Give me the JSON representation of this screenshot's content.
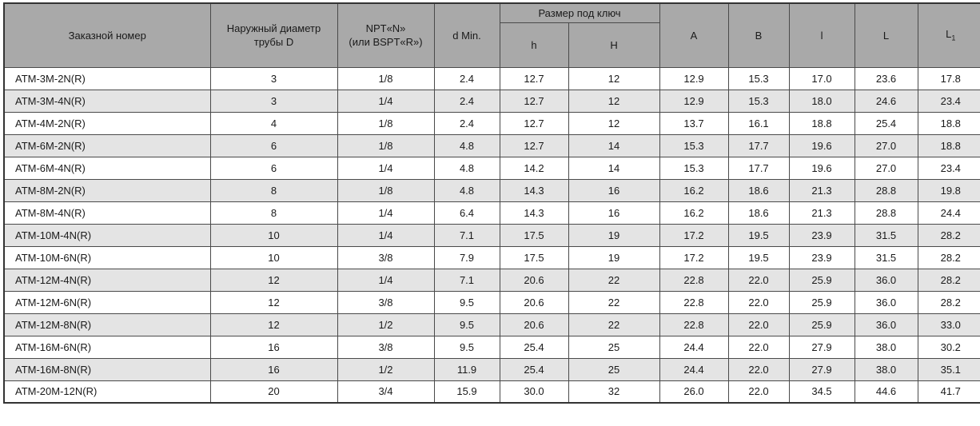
{
  "colors": {
    "header_bg": "#a9a9a9",
    "stripe_bg": "#e4e4e4",
    "border": "#4a4a4a",
    "text": "#1a1a1a"
  },
  "table": {
    "headers": {
      "order_number": "Заказной номер",
      "outer_diameter": "Наружный диаметр\nтрубы D",
      "thread": "NPT«N»\n(или BSPT«R»)",
      "d_min": "d Min.",
      "wrench_size": "Размер под ключ",
      "h_lower": "h",
      "h_upper": "H",
      "a": "A",
      "b": "B",
      "l_lower": "l",
      "l_upper": "L",
      "l1_base": "L",
      "l1_sub": "1"
    },
    "rows": [
      [
        "ATM-3M-2N(R)",
        "3",
        "1/8",
        "2.4",
        "12.7",
        "12",
        "12.9",
        "15.3",
        "17.0",
        "23.6",
        "17.8"
      ],
      [
        "ATM-3M-4N(R)",
        "3",
        "1/4",
        "2.4",
        "12.7",
        "12",
        "12.9",
        "15.3",
        "18.0",
        "24.6",
        "23.4"
      ],
      [
        "ATM-4M-2N(R)",
        "4",
        "1/8",
        "2.4",
        "12.7",
        "12",
        "13.7",
        "16.1",
        "18.8",
        "25.4",
        "18.8"
      ],
      [
        "ATM-6M-2N(R)",
        "6",
        "1/8",
        "4.8",
        "12.7",
        "14",
        "15.3",
        "17.7",
        "19.6",
        "27.0",
        "18.8"
      ],
      [
        "ATM-6M-4N(R)",
        "6",
        "1/4",
        "4.8",
        "14.2",
        "14",
        "15.3",
        "17.7",
        "19.6",
        "27.0",
        "23.4"
      ],
      [
        "ATM-8M-2N(R)",
        "8",
        "1/8",
        "4.8",
        "14.3",
        "16",
        "16.2",
        "18.6",
        "21.3",
        "28.8",
        "19.8"
      ],
      [
        "ATM-8M-4N(R)",
        "8",
        "1/4",
        "6.4",
        "14.3",
        "16",
        "16.2",
        "18.6",
        "21.3",
        "28.8",
        "24.4"
      ],
      [
        "ATM-10M-4N(R)",
        "10",
        "1/4",
        "7.1",
        "17.5",
        "19",
        "17.2",
        "19.5",
        "23.9",
        "31.5",
        "28.2"
      ],
      [
        "ATM-10M-6N(R)",
        "10",
        "3/8",
        "7.9",
        "17.5",
        "19",
        "17.2",
        "19.5",
        "23.9",
        "31.5",
        "28.2"
      ],
      [
        "ATM-12M-4N(R)",
        "12",
        "1/4",
        "7.1",
        "20.6",
        "22",
        "22.8",
        "22.0",
        "25.9",
        "36.0",
        "28.2"
      ],
      [
        "ATM-12M-6N(R)",
        "12",
        "3/8",
        "9.5",
        "20.6",
        "22",
        "22.8",
        "22.0",
        "25.9",
        "36.0",
        "28.2"
      ],
      [
        "ATM-12M-8N(R)",
        "12",
        "1/2",
        "9.5",
        "20.6",
        "22",
        "22.8",
        "22.0",
        "25.9",
        "36.0",
        "33.0"
      ],
      [
        "ATM-16M-6N(R)",
        "16",
        "3/8",
        "9.5",
        "25.4",
        "25",
        "24.4",
        "22.0",
        "27.9",
        "38.0",
        "30.2"
      ],
      [
        "ATM-16M-8N(R)",
        "16",
        "1/2",
        "11.9",
        "25.4",
        "25",
        "24.4",
        "22.0",
        "27.9",
        "38.0",
        "35.1"
      ],
      [
        "ATM-20M-12N(R)",
        "20",
        "3/4",
        "15.9",
        "30.0",
        "32",
        "26.0",
        "22.0",
        "34.5",
        "44.6",
        "41.7"
      ]
    ]
  }
}
